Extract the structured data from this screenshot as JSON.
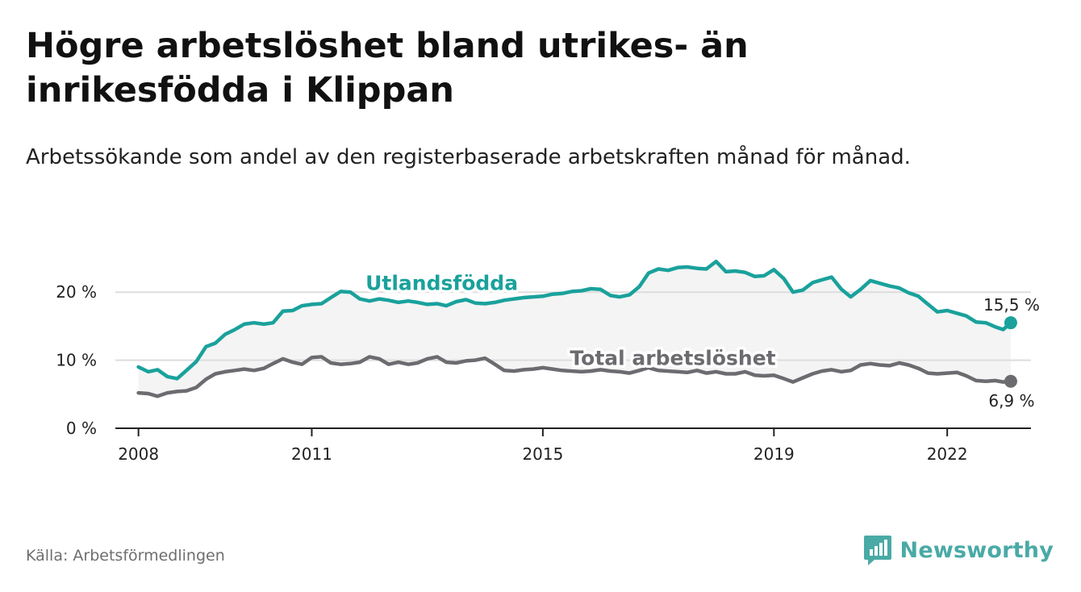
{
  "title": "Högre arbetslöshet bland utrikes- än inrikesfödda i Klippan",
  "subtitle": "Arbetssökande som andel av den registerbaserade arbetskraften månad för månad.",
  "source": "Källa: Arbetsförmedlingen",
  "brand": {
    "name": "Newsworthy",
    "icon": "newsworthy-logo-icon"
  },
  "colors": {
    "foreign": "#1aa19c",
    "total": "#6b6b70",
    "band": "#f4f4f4",
    "grid": "#dddddd",
    "axis": "#222222",
    "brand": "#4aaaa5"
  },
  "chart_data": {
    "type": "line",
    "title": "Högre arbetslöshet bland utrikes- än inrikesfödda i Klippan",
    "xlabel": "",
    "ylabel": "",
    "x_range": [
      2007.6,
      2023.45
    ],
    "ylim": [
      0,
      25
    ],
    "y_ticks": [
      0,
      10,
      20
    ],
    "y_tick_labels": [
      "0 %",
      "10 %",
      "20 %"
    ],
    "x_ticks": [
      2008,
      2011,
      2015,
      2019,
      2022
    ],
    "x_tick_labels": [
      "2008",
      "2011",
      "2015",
      "2019",
      "2022"
    ],
    "band_between_series": true,
    "series": [
      {
        "name": "Utlandsfödda",
        "label": "Utlandsfödda",
        "label_position": [
          2013.25,
          20.3
        ],
        "end_label": "15,5 %",
        "end_value": 15.5,
        "points": [
          [
            2008.0,
            9.0
          ],
          [
            2008.17,
            8.3
          ],
          [
            2008.33,
            8.6
          ],
          [
            2008.5,
            7.6
          ],
          [
            2008.67,
            7.3
          ],
          [
            2008.83,
            8.5
          ],
          [
            2009.0,
            9.8
          ],
          [
            2009.17,
            12.0
          ],
          [
            2009.33,
            12.5
          ],
          [
            2009.5,
            13.8
          ],
          [
            2009.67,
            14.5
          ],
          [
            2009.83,
            15.3
          ],
          [
            2010.0,
            15.5
          ],
          [
            2010.17,
            15.3
          ],
          [
            2010.33,
            15.5
          ],
          [
            2010.5,
            17.2
          ],
          [
            2010.67,
            17.3
          ],
          [
            2010.83,
            18.0
          ],
          [
            2011.0,
            18.2
          ],
          [
            2011.17,
            18.3
          ],
          [
            2011.33,
            19.2
          ],
          [
            2011.5,
            20.1
          ],
          [
            2011.67,
            20.0
          ],
          [
            2011.83,
            19.0
          ],
          [
            2012.0,
            18.7
          ],
          [
            2012.17,
            19.0
          ],
          [
            2012.33,
            18.8
          ],
          [
            2012.5,
            18.5
          ],
          [
            2012.67,
            18.7
          ],
          [
            2012.83,
            18.5
          ],
          [
            2013.0,
            18.2
          ],
          [
            2013.17,
            18.3
          ],
          [
            2013.33,
            18.0
          ],
          [
            2013.5,
            18.6
          ],
          [
            2013.67,
            18.9
          ],
          [
            2013.83,
            18.4
          ],
          [
            2014.0,
            18.3
          ],
          [
            2014.17,
            18.5
          ],
          [
            2014.33,
            18.8
          ],
          [
            2014.5,
            19.0
          ],
          [
            2014.67,
            19.2
          ],
          [
            2014.83,
            19.3
          ],
          [
            2015.0,
            19.4
          ],
          [
            2015.17,
            19.7
          ],
          [
            2015.33,
            19.8
          ],
          [
            2015.5,
            20.1
          ],
          [
            2015.67,
            20.2
          ],
          [
            2015.83,
            20.5
          ],
          [
            2016.0,
            20.4
          ],
          [
            2016.17,
            19.5
          ],
          [
            2016.33,
            19.3
          ],
          [
            2016.5,
            19.6
          ],
          [
            2016.67,
            20.8
          ],
          [
            2016.83,
            22.8
          ],
          [
            2017.0,
            23.4
          ],
          [
            2017.17,
            23.2
          ],
          [
            2017.33,
            23.6
          ],
          [
            2017.5,
            23.7
          ],
          [
            2017.67,
            23.5
          ],
          [
            2017.83,
            23.4
          ],
          [
            2018.0,
            24.5
          ],
          [
            2018.17,
            23.0
          ],
          [
            2018.33,
            23.1
          ],
          [
            2018.5,
            22.9
          ],
          [
            2018.67,
            22.3
          ],
          [
            2018.83,
            22.4
          ],
          [
            2019.0,
            23.3
          ],
          [
            2019.17,
            22.0
          ],
          [
            2019.33,
            20.0
          ],
          [
            2019.5,
            20.3
          ],
          [
            2019.67,
            21.4
          ],
          [
            2019.83,
            21.8
          ],
          [
            2020.0,
            22.2
          ],
          [
            2020.17,
            20.4
          ],
          [
            2020.33,
            19.3
          ],
          [
            2020.5,
            20.4
          ],
          [
            2020.67,
            21.7
          ],
          [
            2020.83,
            21.3
          ],
          [
            2021.0,
            20.9
          ],
          [
            2021.17,
            20.6
          ],
          [
            2021.33,
            19.9
          ],
          [
            2021.5,
            19.4
          ],
          [
            2021.67,
            18.2
          ],
          [
            2021.83,
            17.1
          ],
          [
            2022.0,
            17.3
          ],
          [
            2022.17,
            16.9
          ],
          [
            2022.33,
            16.5
          ],
          [
            2022.5,
            15.6
          ],
          [
            2022.67,
            15.5
          ],
          [
            2022.83,
            14.9
          ],
          [
            2022.97,
            14.5
          ],
          [
            2023.1,
            15.5
          ]
        ]
      },
      {
        "name": "Total arbetslöshet",
        "label": "Total arbetslöshet",
        "label_position": [
          2017.25,
          9.3
        ],
        "end_label": "6,9 %",
        "end_value": 6.9,
        "points": [
          [
            2008.0,
            5.2
          ],
          [
            2008.17,
            5.1
          ],
          [
            2008.33,
            4.7
          ],
          [
            2008.5,
            5.2
          ],
          [
            2008.67,
            5.4
          ],
          [
            2008.83,
            5.5
          ],
          [
            2009.0,
            6.0
          ],
          [
            2009.17,
            7.2
          ],
          [
            2009.33,
            8.0
          ],
          [
            2009.5,
            8.3
          ],
          [
            2009.67,
            8.5
          ],
          [
            2009.83,
            8.7
          ],
          [
            2010.0,
            8.5
          ],
          [
            2010.17,
            8.8
          ],
          [
            2010.33,
            9.5
          ],
          [
            2010.5,
            10.2
          ],
          [
            2010.67,
            9.7
          ],
          [
            2010.83,
            9.4
          ],
          [
            2011.0,
            10.4
          ],
          [
            2011.17,
            10.5
          ],
          [
            2011.33,
            9.6
          ],
          [
            2011.5,
            9.4
          ],
          [
            2011.67,
            9.5
          ],
          [
            2011.83,
            9.7
          ],
          [
            2012.0,
            10.5
          ],
          [
            2012.17,
            10.2
          ],
          [
            2012.33,
            9.4
          ],
          [
            2012.5,
            9.7
          ],
          [
            2012.67,
            9.4
          ],
          [
            2012.83,
            9.6
          ],
          [
            2013.0,
            10.2
          ],
          [
            2013.17,
            10.5
          ],
          [
            2013.33,
            9.7
          ],
          [
            2013.5,
            9.6
          ],
          [
            2013.67,
            9.9
          ],
          [
            2013.83,
            10.0
          ],
          [
            2014.0,
            10.3
          ],
          [
            2014.17,
            9.4
          ],
          [
            2014.33,
            8.5
          ],
          [
            2014.5,
            8.4
          ],
          [
            2014.67,
            8.6
          ],
          [
            2014.83,
            8.7
          ],
          [
            2015.0,
            8.9
          ],
          [
            2015.17,
            8.7
          ],
          [
            2015.33,
            8.5
          ],
          [
            2015.5,
            8.4
          ],
          [
            2015.67,
            8.3
          ],
          [
            2015.83,
            8.4
          ],
          [
            2016.0,
            8.6
          ],
          [
            2016.17,
            8.4
          ],
          [
            2016.33,
            8.3
          ],
          [
            2016.5,
            8.1
          ],
          [
            2016.67,
            8.5
          ],
          [
            2016.83,
            8.9
          ],
          [
            2017.0,
            8.5
          ],
          [
            2017.17,
            8.4
          ],
          [
            2017.33,
            8.3
          ],
          [
            2017.5,
            8.2
          ],
          [
            2017.67,
            8.5
          ],
          [
            2017.83,
            8.1
          ],
          [
            2018.0,
            8.3
          ],
          [
            2018.17,
            8.0
          ],
          [
            2018.33,
            8.0
          ],
          [
            2018.5,
            8.3
          ],
          [
            2018.67,
            7.8
          ],
          [
            2018.83,
            7.7
          ],
          [
            2019.0,
            7.8
          ],
          [
            2019.17,
            7.3
          ],
          [
            2019.33,
            6.8
          ],
          [
            2019.5,
            7.4
          ],
          [
            2019.67,
            8.0
          ],
          [
            2019.83,
            8.4
          ],
          [
            2020.0,
            8.6
          ],
          [
            2020.17,
            8.3
          ],
          [
            2020.33,
            8.5
          ],
          [
            2020.5,
            9.3
          ],
          [
            2020.67,
            9.5
          ],
          [
            2020.83,
            9.3
          ],
          [
            2021.0,
            9.2
          ],
          [
            2021.17,
            9.6
          ],
          [
            2021.33,
            9.3
          ],
          [
            2021.5,
            8.8
          ],
          [
            2021.67,
            8.1
          ],
          [
            2021.83,
            8.0
          ],
          [
            2022.0,
            8.1
          ],
          [
            2022.17,
            8.2
          ],
          [
            2022.33,
            7.7
          ],
          [
            2022.5,
            7.0
          ],
          [
            2022.67,
            6.9
          ],
          [
            2022.83,
            7.0
          ],
          [
            2022.97,
            6.8
          ],
          [
            2023.1,
            6.9
          ]
        ]
      }
    ]
  }
}
